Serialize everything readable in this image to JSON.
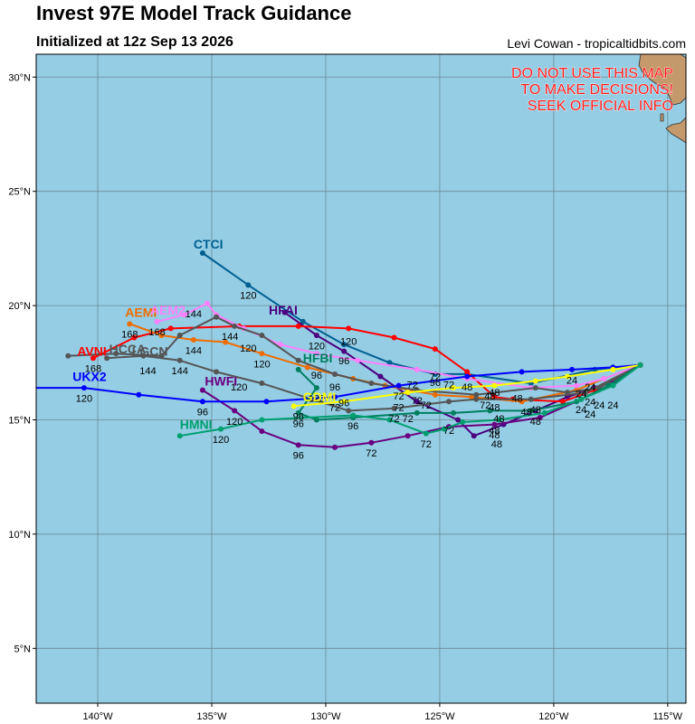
{
  "header": {
    "title": "Invest 97E Model Track Guidance",
    "subtitle": "Initialized at 12z Sep 13 2026",
    "credit": "Levi Cowan - tropicaltidbits.com"
  },
  "warning": [
    "DO NOT USE THIS MAP",
    "TO MAKE DECISIONS!",
    "SEEK OFFICIAL INFO"
  ],
  "colors": {
    "ocean": "#94cde4",
    "land": "#c49a6c",
    "grid": "#6e8a96",
    "warning": "#ff1a1a"
  },
  "chart_data": {
    "type": "map-track",
    "xlim": [
      -142.7,
      -114.2
    ],
    "ylim": [
      2.6,
      31.0
    ],
    "xticks": [
      -140,
      -135,
      -130,
      -125,
      -120,
      -115
    ],
    "xtick_labels": [
      "140°W",
      "135°W",
      "130°W",
      "125°W",
      "120°W",
      "115°W"
    ],
    "yticks": [
      5,
      10,
      15,
      20,
      25,
      30
    ],
    "ytick_labels": [
      "5°N",
      "10°N",
      "15°N",
      "20°N",
      "25°N",
      "30°N"
    ],
    "grid": true,
    "origin": [
      -116.2,
      17.4
    ],
    "tracks": [
      {
        "name": "CTCI",
        "color": "#005f91",
        "label_pos": [
          -135.8,
          22.7
        ],
        "points": [
          [
            -116.2,
            17.4
          ],
          [
            -118.2,
            17.2
          ],
          [
            -121.0,
            16.6
          ],
          [
            -123.8,
            17.0
          ],
          [
            -125.2,
            17.0
          ],
          [
            -127.2,
            17.5
          ],
          [
            -129.2,
            18.3
          ],
          [
            -131.0,
            19.3
          ],
          [
            -133.4,
            20.9
          ],
          [
            -135.4,
            22.3
          ]
        ],
        "labels": [
          {
            "text": "96",
            "pos": [
              -125.2,
              16.65
            ]
          },
          {
            "text": "120",
            "pos": [
              -133.4,
              20.45
            ]
          }
        ]
      },
      {
        "name": "HFAI",
        "color": "#4c0080",
        "label_pos": [
          -132.5,
          19.8
        ],
        "points": [
          [
            -116.2,
            17.4
          ],
          [
            -117.2,
            16.8
          ],
          [
            -118.2,
            16.4
          ],
          [
            -119.4,
            16.0
          ],
          [
            -120.8,
            15.4
          ],
          [
            -122.2,
            14.8
          ],
          [
            -123.5,
            14.3
          ],
          [
            -124.2,
            15.0
          ],
          [
            -126.0,
            15.8
          ],
          [
            -127.6,
            16.9
          ],
          [
            -129.2,
            18.0
          ],
          [
            -130.4,
            18.7
          ],
          [
            -131.8,
            19.7
          ]
        ],
        "labels": [
          {
            "text": "48",
            "pos": [
              -122.5,
              13.95
            ]
          },
          {
            "text": "72",
            "pos": [
              -125.2,
              16.9
            ]
          },
          {
            "text": "96",
            "pos": [
              -129.2,
              17.6
            ]
          },
          {
            "text": "120",
            "pos": [
              -130.4,
              18.25
            ]
          }
        ]
      },
      {
        "name": "AVNI",
        "color": "#ff0000",
        "label_pos": [
          -140.9,
          18.0
        ],
        "points": [
          [
            -116.2,
            17.4
          ],
          [
            -118.2,
            16.3
          ],
          [
            -119.6,
            15.8
          ],
          [
            -121.8,
            15.9
          ],
          [
            -122.6,
            16.0
          ],
          [
            -123.8,
            17.1
          ],
          [
            -125.2,
            18.1
          ],
          [
            -127.0,
            18.6
          ],
          [
            -129.0,
            19.0
          ],
          [
            -131.2,
            19.1
          ],
          [
            -133.8,
            19.1
          ],
          [
            -136.8,
            19.0
          ],
          [
            -138.4,
            18.6
          ],
          [
            -140.2,
            17.7
          ]
        ],
        "labels": [
          {
            "text": "24",
            "pos": [
              -118.4,
              15.8
            ]
          },
          {
            "text": "48",
            "pos": [
              -122.6,
              16.2
            ]
          },
          {
            "text": "120",
            "pos": [
              -129.0,
              18.45
            ]
          },
          {
            "text": "168",
            "pos": [
              -140.2,
              17.25
            ]
          }
        ]
      },
      {
        "name": "AEMI",
        "color": "#ef6c00",
        "label_pos": [
          -138.8,
          19.7
        ],
        "points": [
          [
            -116.2,
            17.4
          ],
          [
            -117.8,
            16.8
          ],
          [
            -119.0,
            16.3
          ],
          [
            -121.4,
            15.8
          ],
          [
            -123.6,
            16.0
          ],
          [
            -125.2,
            16.1
          ],
          [
            -127.4,
            16.5
          ],
          [
            -128.8,
            16.8
          ],
          [
            -130.8,
            17.3
          ],
          [
            -132.8,
            17.9
          ],
          [
            -134.4,
            18.4
          ],
          [
            -135.8,
            18.5
          ],
          [
            -137.2,
            18.7
          ],
          [
            -138.6,
            19.2
          ]
        ],
        "labels": [
          {
            "text": "120",
            "pos": [
              -132.8,
              17.45
            ]
          },
          {
            "text": "144",
            "pos": [
              -135.8,
              18.05
            ]
          },
          {
            "text": "168",
            "pos": [
              -138.6,
              18.75
            ]
          }
        ]
      },
      {
        "name": "AEM2",
        "color": "#ff80ff",
        "label_pos": [
          -137.7,
          19.8
        ],
        "points": [
          [
            -116.2,
            17.4
          ],
          [
            -117.8,
            16.8
          ],
          [
            -119.0,
            16.5
          ],
          [
            -121.0,
            16.4
          ],
          [
            -123.8,
            16.8
          ],
          [
            -126.0,
            17.2
          ],
          [
            -128.6,
            17.6
          ],
          [
            -130.4,
            17.9
          ],
          [
            -132.0,
            18.3
          ],
          [
            -133.6,
            19.0
          ],
          [
            -134.8,
            19.6
          ],
          [
            -135.2,
            20.1
          ],
          [
            -136.2,
            19.6
          ],
          [
            -137.4,
            19.3
          ]
        ],
        "labels": [
          {
            "text": "144",
            "pos": [
              -135.8,
              19.65
            ]
          },
          {
            "text": "168",
            "pos": [
              -137.4,
              18.85
            ]
          }
        ]
      },
      {
        "name": "HCCA",
        "color": "#555555",
        "label_pos": [
          -139.5,
          18.1
        ],
        "points": [
          [
            -116.2,
            17.4
          ],
          [
            -118.0,
            16.4
          ],
          [
            -119.4,
            16.2
          ],
          [
            -120.8,
            16.4
          ],
          [
            -123.4,
            16.1
          ],
          [
            -126.0,
            16.3
          ],
          [
            -128.0,
            16.6
          ],
          [
            -129.6,
            17.0
          ],
          [
            -131.2,
            17.6
          ],
          [
            -132.8,
            18.7
          ],
          [
            -134.0,
            19.1
          ],
          [
            -134.8,
            19.5
          ],
          [
            -136.4,
            18.7
          ],
          [
            -137.2,
            17.8
          ],
          [
            -139.2,
            17.9
          ],
          [
            -141.3,
            17.8
          ]
        ],
        "labels": [
          {
            "text": "120",
            "pos": [
              -133.4,
              18.15
            ]
          },
          {
            "text": "144",
            "pos": [
              -134.2,
              18.65
            ]
          }
        ]
      },
      {
        "name": "LGCN",
        "color": "#555555",
        "label_pos": [
          -138.5,
          18.0
        ],
        "points": [
          [
            -116.2,
            17.4
          ],
          [
            -118.6,
            16.2
          ],
          [
            -121.0,
            15.9
          ],
          [
            -123.4,
            15.9
          ],
          [
            -124.6,
            15.8
          ],
          [
            -127.0,
            15.5
          ],
          [
            -129.0,
            15.4
          ],
          [
            -130.6,
            15.9
          ],
          [
            -132.8,
            16.6
          ],
          [
            -134.8,
            17.1
          ],
          [
            -136.4,
            17.6
          ],
          [
            -138.0,
            17.8
          ],
          [
            -139.6,
            17.7
          ]
        ],
        "labels": [
          {
            "text": "144",
            "pos": [
              -136.4,
              17.15
            ]
          },
          {
            "text": "144",
            "pos": [
              -137.8,
              17.15
            ]
          }
        ]
      },
      {
        "name": "HWFI",
        "color": "#6a0080",
        "label_pos": [
          -135.3,
          16.7
        ],
        "points": [
          [
            -116.2,
            17.4
          ],
          [
            -117.4,
            16.6
          ],
          [
            -118.8,
            15.9
          ],
          [
            -120.6,
            15.1
          ],
          [
            -122.6,
            14.8
          ],
          [
            -124.6,
            14.7
          ],
          [
            -126.4,
            14.3
          ],
          [
            -128.0,
            14.0
          ],
          [
            -129.6,
            13.8
          ],
          [
            -131.2,
            13.9
          ],
          [
            -132.8,
            14.5
          ],
          [
            -134.0,
            15.4
          ],
          [
            -135.4,
            16.3
          ]
        ],
        "labels": [
          {
            "text": "24",
            "pos": [
              -118.8,
              15.45
            ]
          },
          {
            "text": "48",
            "pos": [
              -122.6,
              14.35
            ]
          },
          {
            "text": "72",
            "pos": [
              -128.0,
              13.55
            ]
          },
          {
            "text": "96",
            "pos": [
              -131.2,
              13.45
            ]
          },
          {
            "text": "120",
            "pos": [
              -134.0,
              14.95
            ]
          }
        ]
      },
      {
        "name": "UKX2",
        "color": "#0000ff",
        "label_pos": [
          -141.1,
          16.9
        ],
        "points": [
          [
            -116.2,
            17.4
          ],
          [
            -117.4,
            17.3
          ],
          [
            -119.2,
            17.2
          ],
          [
            -121.4,
            17.1
          ],
          [
            -123.8,
            16.9
          ],
          [
            -126.8,
            16.5
          ],
          [
            -129.6,
            16.0
          ],
          [
            -132.6,
            15.8
          ],
          [
            -135.4,
            15.8
          ],
          [
            -138.2,
            16.1
          ],
          [
            -140.6,
            16.4
          ],
          [
            -142.8,
            16.4
          ]
        ],
        "labels": [
          {
            "text": "24",
            "pos": [
              -119.2,
              16.75
            ]
          },
          {
            "text": "48",
            "pos": [
              -123.8,
              16.45
            ]
          },
          {
            "text": "72",
            "pos": [
              -126.8,
              16.05
            ]
          },
          {
            "text": "96",
            "pos": [
              -135.4,
              15.35
            ]
          },
          {
            "text": "120",
            "pos": [
              -140.6,
              15.95
            ]
          }
        ]
      },
      {
        "name": "HFBI",
        "color": "#007f5f",
        "label_pos": [
          -131.0,
          17.7
        ],
        "points": [
          [
            -116.2,
            17.4
          ],
          [
            -117.6,
            16.5
          ],
          [
            -119.0,
            15.8
          ],
          [
            -121.0,
            15.4
          ],
          [
            -122.8,
            15.4
          ],
          [
            -124.4,
            15.3
          ],
          [
            -126.0,
            15.3
          ],
          [
            -128.8,
            15.1
          ],
          [
            -130.4,
            15.0
          ],
          [
            -131.2,
            15.3
          ],
          [
            -130.4,
            16.4
          ],
          [
            -131.2,
            17.2
          ]
        ],
        "labels": [
          {
            "text": "96",
            "pos": [
              -131.2,
              14.85
            ]
          },
          {
            "text": "120",
            "pos": [
              -130.4,
              15.95
            ]
          }
        ]
      },
      {
        "name": "GDMI",
        "color": "#ffff00",
        "label_pos": [
          -131.0,
          16.0
        ],
        "points": [
          [
            -116.2,
            17.4
          ],
          [
            -117.4,
            17.2
          ],
          [
            -119.4,
            16.9
          ],
          [
            -120.8,
            16.7
          ],
          [
            -122.6,
            16.5
          ],
          [
            -124.4,
            16.4
          ],
          [
            -126.4,
            16.2
          ],
          [
            -129.2,
            15.8
          ],
          [
            -131.4,
            15.6
          ]
        ],
        "labels": [
          {
            "text": "96",
            "pos": [
              -131.2,
              15.15
            ]
          }
        ]
      },
      {
        "name": "HMNI",
        "color": "#009f6f",
        "label_pos": [
          -136.4,
          14.8
        ],
        "points": [
          [
            -116.2,
            17.4
          ],
          [
            -117.4,
            16.5
          ],
          [
            -118.8,
            15.9
          ],
          [
            -120.4,
            15.3
          ],
          [
            -122.4,
            15.0
          ],
          [
            -124.0,
            14.9
          ],
          [
            -124.8,
            14.6
          ],
          [
            -125.6,
            14.4
          ],
          [
            -127.2,
            15.0
          ],
          [
            -128.8,
            15.2
          ],
          [
            -132.8,
            15.0
          ],
          [
            -134.6,
            14.6
          ],
          [
            -136.4,
            14.3
          ]
        ],
        "labels": [
          {
            "text": "24",
            "pos": [
              -118.0,
              15.65
            ]
          },
          {
            "text": "48",
            "pos": [
              -122.6,
              14.55
            ]
          },
          {
            "text": "72",
            "pos": [
              -125.6,
              13.95
            ]
          },
          {
            "text": "96",
            "pos": [
              -128.8,
              14.75
            ]
          },
          {
            "text": "120",
            "pos": [
              -134.6,
              14.15
            ]
          }
        ]
      }
    ]
  },
  "extra_labels": [
    {
      "text": "72",
      "pos": [
        -124.6,
        16.55
      ]
    },
    {
      "text": "72",
      "pos": [
        -126.2,
        16.55
      ]
    },
    {
      "text": "48",
      "pos": [
        -122.8,
        16.05
      ]
    },
    {
      "text": "48",
      "pos": [
        -121.6,
        15.95
      ]
    },
    {
      "text": "48",
      "pos": [
        -120.8,
        15.45
      ]
    },
    {
      "text": "72",
      "pos": [
        -123.0,
        15.65
      ]
    },
    {
      "text": "48",
      "pos": [
        -122.6,
        15.55
      ]
    },
    {
      "text": "48",
      "pos": [
        -121.2,
        15.35
      ]
    },
    {
      "text": "72",
      "pos": [
        -125.6,
        15.65
      ]
    },
    {
      "text": "72",
      "pos": [
        -126.0,
        15.85
      ]
    },
    {
      "text": "72",
      "pos": [
        -126.8,
        15.55
      ]
    },
    {
      "text": "72",
      "pos": [
        -126.4,
        15.05
      ]
    },
    {
      "text": "96",
      "pos": [
        -129.6,
        16.45
      ]
    },
    {
      "text": "96",
      "pos": [
        -130.4,
        16.95
      ]
    },
    {
      "text": "96",
      "pos": [
        -129.2,
        15.75
      ]
    },
    {
      "text": "72",
      "pos": [
        -127.0,
        15.05
      ]
    },
    {
      "text": "72",
      "pos": [
        -129.6,
        15.55
      ]
    },
    {
      "text": "120",
      "pos": [
        -133.8,
        16.45
      ]
    },
    {
      "text": "48",
      "pos": [
        -120.8,
        14.95
      ]
    },
    {
      "text": "48",
      "pos": [
        -122.4,
        15.05
      ]
    },
    {
      "text": "72",
      "pos": [
        -124.6,
        14.55
      ]
    },
    {
      "text": "24",
      "pos": [
        -117.4,
        15.65
      ]
    },
    {
      "text": "24",
      "pos": [
        -118.4,
        15.25
      ]
    },
    {
      "text": "24",
      "pos": [
        -118.4,
        16.45
      ]
    },
    {
      "text": "24",
      "pos": [
        -118.8,
        16.15
      ]
    }
  ]
}
